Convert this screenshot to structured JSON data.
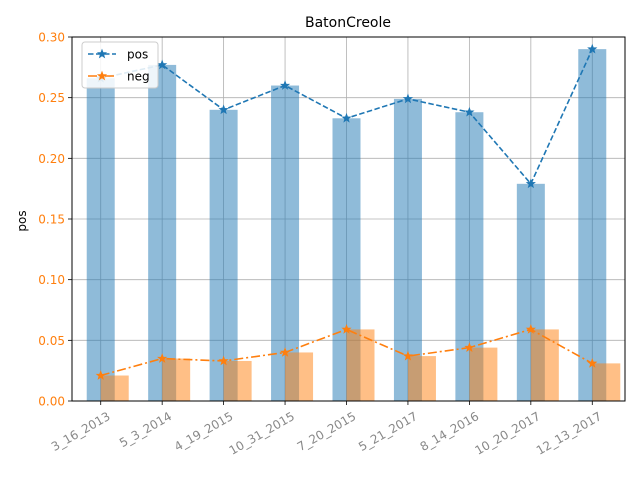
{
  "chart_data": {
    "type": "bar",
    "title": "BatonCreole",
    "ylabel": "pos",
    "xlabel": "",
    "ylim": [
      0,
      0.3
    ],
    "yticks": [
      "0.00",
      "0.05",
      "0.10",
      "0.15",
      "0.20",
      "0.25",
      "0.30"
    ],
    "ytick_values": [
      0,
      0.05,
      0.1,
      0.15,
      0.2,
      0.25,
      0.3
    ],
    "grid": true,
    "legend_position": "top-left",
    "categories": [
      "3_16_2013",
      "5_3_2014",
      "4_19_2015",
      "10_31_2015",
      "7_20_2015",
      "5_21_2017",
      "8_14_2016",
      "10_20_2017",
      "12_13_2017"
    ],
    "series": [
      {
        "name": "pos",
        "color": "#1f77b4",
        "line_style": "dashed",
        "values": [
          0.266,
          0.277,
          0.24,
          0.26,
          0.233,
          0.249,
          0.238,
          0.179,
          0.29
        ]
      },
      {
        "name": "neg",
        "color": "#ff7f0e",
        "line_style": "dashdot",
        "values": [
          0.021,
          0.035,
          0.033,
          0.04,
          0.059,
          0.037,
          0.044,
          0.059,
          0.031
        ]
      }
    ]
  }
}
